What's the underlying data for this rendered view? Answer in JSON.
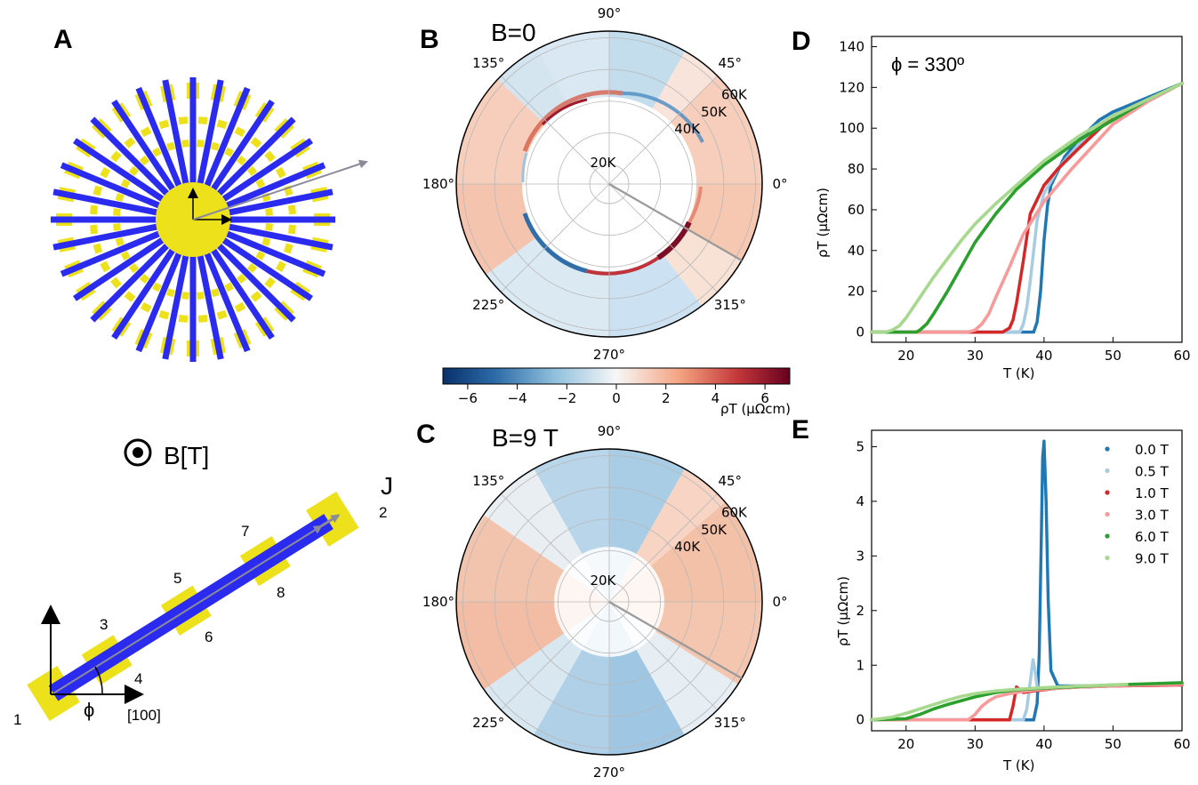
{
  "panel_labels": {
    "a": "A",
    "b": "B",
    "c": "C",
    "d": "D",
    "e": "E"
  },
  "panel_a": {
    "arm_count": 32,
    "field_label": "B[T]",
    "current_label": "J",
    "axis_label": "[100]",
    "angle_label": "ϕ",
    "contacts": [
      "1",
      "2",
      "3",
      "4",
      "5",
      "6",
      "7",
      "8"
    ],
    "colors": {
      "bar": "#2b2bf0",
      "pad": "#ece11a",
      "arrow": "#8a8a9a"
    }
  },
  "panel_b": {
    "title": "B=0",
    "angle_labels": [
      "90°",
      "45°",
      "0°",
      "315°",
      "270°",
      "225°",
      "180°",
      "135°"
    ],
    "radial_labels": [
      "20K",
      "40K",
      "50K",
      "60K"
    ],
    "radial_values": [
      20,
      40,
      50,
      60
    ],
    "cut_angle_deg": 330
  },
  "colorbar": {
    "ticks": [
      "−6",
      "−4",
      "−2",
      "0",
      "2",
      "4",
      "6"
    ],
    "tick_values": [
      -6,
      -4,
      -2,
      0,
      2,
      4,
      6
    ],
    "range": [
      -7,
      7
    ],
    "label": "ρT (μΩcm)",
    "colors": {
      "neg": "#0b3c73",
      "zero": "#f7f7f7",
      "pos": "#6b0a1e"
    }
  },
  "panel_c": {
    "title": "B=9 T",
    "angle_labels": [
      "90°",
      "45°",
      "0°",
      "315°",
      "270°",
      "225°",
      "180°",
      "135°"
    ],
    "radial_labels": [
      "20K",
      "40K",
      "50K",
      "60K"
    ],
    "radial_values": [
      20,
      40,
      50,
      60
    ],
    "cut_angle_deg": 330
  },
  "chart_data": [
    {
      "panel": "D",
      "type": "scatter",
      "annotation": "ϕ = 330º",
      "xlabel": "T   (K)",
      "ylabel": "ρT   (μΩcm)",
      "xlim": [
        15,
        60
      ],
      "ylim": [
        -5,
        145
      ],
      "xticks": [
        20,
        30,
        40,
        50,
        60
      ],
      "yticks": [
        0,
        20,
        40,
        60,
        80,
        100,
        120,
        140
      ],
      "series": [
        {
          "color": "#1f77b4",
          "x": [
            15,
            38.5,
            39,
            39.5,
            40,
            40.5,
            41,
            43,
            45,
            48,
            50,
            55,
            60
          ],
          "y": [
            0,
            0,
            5,
            20,
            45,
            62,
            72,
            86,
            94,
            104,
            108,
            115,
            122
          ]
        },
        {
          "color": "#a6cbe3",
          "x": [
            15,
            36.5,
            37,
            37.5,
            38,
            38.5,
            39,
            40,
            42,
            45,
            50,
            55,
            60
          ],
          "y": [
            0,
            0,
            4,
            12,
            25,
            40,
            55,
            68,
            80,
            92,
            106,
            114,
            122
          ]
        },
        {
          "color": "#d62728",
          "x": [
            15,
            34,
            35,
            35.5,
            36,
            37,
            38,
            40,
            42,
            45,
            50,
            55,
            60
          ],
          "y": [
            0,
            0,
            2,
            6,
            14,
            35,
            58,
            72,
            80,
            90,
            106,
            114,
            122
          ]
        },
        {
          "color": "#f89a9a",
          "x": [
            15,
            29,
            30,
            31,
            32,
            33,
            35,
            37,
            40,
            44,
            50,
            55,
            60
          ],
          "y": [
            0,
            0,
            1,
            4,
            9,
            17,
            32,
            48,
            64,
            80,
            102,
            113,
            122
          ]
        },
        {
          "color": "#2ca02c",
          "x": [
            15,
            21.5,
            22,
            23,
            24,
            26,
            28,
            30,
            33,
            36,
            40,
            45,
            50,
            55,
            60
          ],
          "y": [
            0,
            0,
            1,
            4,
            9,
            20,
            32,
            44,
            58,
            70,
            82,
            94,
            104,
            114,
            122
          ]
        },
        {
          "color": "#a6d98e",
          "x": [
            15,
            17,
            18,
            19,
            20,
            22,
            24,
            26,
            28,
            30,
            33,
            36,
            40,
            45,
            50,
            55,
            60
          ],
          "y": [
            0,
            0,
            1,
            3,
            7,
            17,
            27,
            36,
            45,
            53,
            63,
            72,
            84,
            96,
            106,
            114,
            122
          ]
        }
      ]
    },
    {
      "panel": "E",
      "type": "scatter",
      "xlabel": "T   (K)",
      "ylabel": "ρT   (μΩcm)",
      "xlim": [
        15,
        60
      ],
      "ylim": [
        -0.2,
        5.3
      ],
      "xticks": [
        20,
        30,
        40,
        50,
        60
      ],
      "yticks": [
        0,
        1,
        2,
        3,
        4,
        5
      ],
      "legend": [
        "0.0 T",
        "0.5 T",
        "1.0 T",
        "3.0 T",
        "6.0 T",
        "9.0 T"
      ],
      "series": [
        {
          "name": "0.0 T",
          "color": "#1f77b4",
          "x": [
            15,
            38.5,
            39,
            39.3,
            39.6,
            39.8,
            40,
            40.3,
            40.6,
            41,
            42,
            45,
            50,
            55,
            60
          ],
          "y": [
            0,
            0,
            0.3,
            1.2,
            3.3,
            4.8,
            5.1,
            4.0,
            2.2,
            0.9,
            0.62,
            0.62,
            0.63,
            0.64,
            0.65
          ]
        },
        {
          "name": "0.5 T",
          "color": "#a6cbe3",
          "x": [
            15,
            37,
            37.5,
            38,
            38.4,
            38.7,
            39,
            39.5,
            40,
            42,
            45,
            50,
            55,
            60
          ],
          "y": [
            0,
            0,
            0.2,
            0.7,
            1.1,
            0.9,
            0.6,
            0.55,
            0.56,
            0.58,
            0.6,
            0.62,
            0.63,
            0.64
          ]
        },
        {
          "name": "1.0 T",
          "color": "#d62728",
          "x": [
            15,
            35,
            35.5,
            36,
            36.5,
            37,
            38,
            40,
            42,
            45,
            50,
            55,
            60
          ],
          "y": [
            0,
            0,
            0.25,
            0.6,
            0.55,
            0.5,
            0.52,
            0.55,
            0.58,
            0.6,
            0.62,
            0.63,
            0.64
          ]
        },
        {
          "name": "3.0 T",
          "color": "#f89a9a",
          "x": [
            15,
            29,
            30,
            31,
            32,
            33,
            35,
            37,
            40,
            45,
            50,
            55,
            60
          ],
          "y": [
            0,
            0,
            0.1,
            0.25,
            0.35,
            0.42,
            0.48,
            0.52,
            0.56,
            0.6,
            0.62,
            0.64,
            0.65
          ]
        },
        {
          "name": "6.0 T",
          "color": "#2ca02c",
          "x": [
            15,
            20,
            22,
            24,
            26,
            28,
            30,
            33,
            36,
            40,
            45,
            50,
            55,
            60
          ],
          "y": [
            0,
            0.02,
            0.1,
            0.2,
            0.28,
            0.35,
            0.42,
            0.5,
            0.55,
            0.58,
            0.61,
            0.64,
            0.66,
            0.68
          ]
        },
        {
          "name": "9.0 T",
          "color": "#a6d98e",
          "x": [
            15,
            18,
            20,
            22,
            24,
            26,
            28,
            30,
            33,
            36,
            40,
            45,
            50,
            52
          ],
          "y": [
            0,
            0.05,
            0.12,
            0.2,
            0.28,
            0.36,
            0.43,
            0.48,
            0.53,
            0.56,
            0.59,
            0.62,
            0.64,
            0.65
          ]
        }
      ]
    }
  ]
}
